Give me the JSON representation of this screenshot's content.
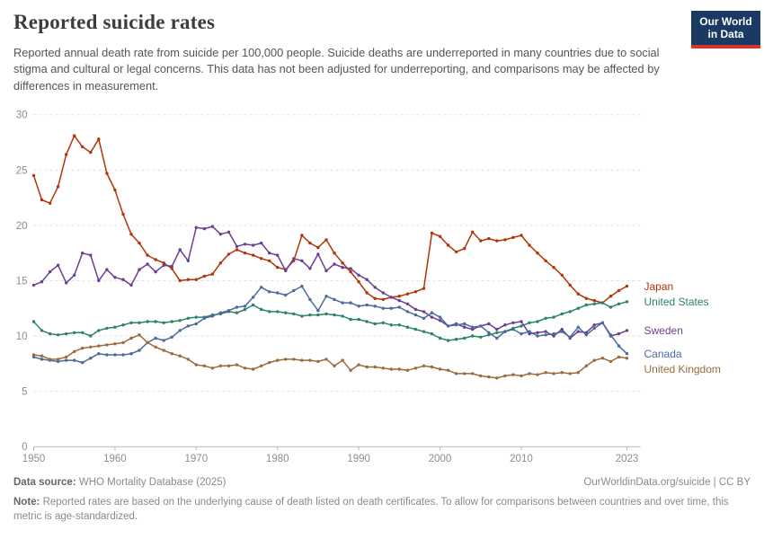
{
  "header": {
    "title": "Reported suicide rates",
    "subtitle": "Reported annual death rate from suicide per 100,000 people. Suicide deaths are underreported in many countries due to social stigma and cultural or legal concerns. This data has not been adjusted for underreporting, and comparisons may be affected by differences in measurement.",
    "logo": {
      "line1": "Our World",
      "line2": "in Data",
      "bg_color": "#1a3a63",
      "accent_color": "#d8342e"
    }
  },
  "chart_data": {
    "type": "line",
    "title": "Reported suicide rates",
    "xlabel": "",
    "ylabel": "",
    "xlim": [
      1950,
      2023
    ],
    "ylim": [
      0,
      30
    ],
    "x_ticks": [
      1950,
      1960,
      1970,
      1980,
      1990,
      2000,
      2010,
      2023
    ],
    "y_ticks": [
      0,
      5,
      10,
      15,
      20,
      25,
      30
    ],
    "grid": "horizontal-dashed",
    "legend_position": "line-end-labels-right",
    "x_start": 1950,
    "x_step": 1,
    "series": [
      {
        "name": "Japan",
        "color": "#b13507",
        "values": [
          24.5,
          22.3,
          22.0,
          23.5,
          26.4,
          28.1,
          27.1,
          26.6,
          27.8,
          24.7,
          23.2,
          21.0,
          19.2,
          18.4,
          17.3,
          16.9,
          16.6,
          16.1,
          15.0,
          15.1,
          15.1,
          15.4,
          15.6,
          16.6,
          17.4,
          17.8,
          17.5,
          17.3,
          17.0,
          16.8,
          16.2,
          16.0,
          16.8,
          19.1,
          18.4,
          18.0,
          18.7,
          17.5,
          16.6,
          15.8,
          14.9,
          13.9,
          13.4,
          13.3,
          13.5,
          13.6,
          13.8,
          14.0,
          14.3,
          19.3,
          19.0,
          18.2,
          17.6,
          17.9,
          19.4,
          18.6,
          18.8,
          18.6,
          18.7,
          18.9,
          19.1,
          18.2,
          17.5,
          16.8,
          16.2,
          15.5,
          14.6,
          13.8,
          13.4,
          13.2,
          13.0,
          13.6,
          14.1,
          14.5
        ]
      },
      {
        "name": "United States",
        "color": "#2c8465",
        "values": [
          11.3,
          10.5,
          10.2,
          10.1,
          10.2,
          10.3,
          10.3,
          10.0,
          10.5,
          10.7,
          10.8,
          11.0,
          11.2,
          11.2,
          11.3,
          11.3,
          11.2,
          11.3,
          11.4,
          11.6,
          11.7,
          11.7,
          11.9,
          12.0,
          12.2,
          12.1,
          12.4,
          12.8,
          12.4,
          12.2,
          12.2,
          12.1,
          12.0,
          11.8,
          11.9,
          11.9,
          12.0,
          11.9,
          11.8,
          11.5,
          11.5,
          11.3,
          11.1,
          11.2,
          11.0,
          11.0,
          10.8,
          10.6,
          10.4,
          10.2,
          9.8,
          9.6,
          9.7,
          9.8,
          10.0,
          9.9,
          10.1,
          10.3,
          10.4,
          10.7,
          10.9,
          11.2,
          11.3,
          11.6,
          11.7,
          12.0,
          12.2,
          12.5,
          12.8,
          12.9,
          13.0,
          12.6,
          12.9,
          13.1
        ]
      },
      {
        "name": "Sweden",
        "color": "#6d3e91",
        "values": [
          14.6,
          14.9,
          15.8,
          16.4,
          14.8,
          15.5,
          17.5,
          17.3,
          15.0,
          16.0,
          15.3,
          15.1,
          14.6,
          16.0,
          16.5,
          15.8,
          16.4,
          16.3,
          17.8,
          16.8,
          19.8,
          19.7,
          19.9,
          19.2,
          19.4,
          18.1,
          18.3,
          18.2,
          18.4,
          17.5,
          17.3,
          15.9,
          17.0,
          16.8,
          16.1,
          17.4,
          15.9,
          16.5,
          16.2,
          16.1,
          15.5,
          15.1,
          14.4,
          13.9,
          13.5,
          13.2,
          12.9,
          12.4,
          12.2,
          11.7,
          11.4,
          10.9,
          11.1,
          10.8,
          10.6,
          10.9,
          11.1,
          10.6,
          11.0,
          11.2,
          11.3,
          10.2,
          10.3,
          10.4,
          10.0,
          10.6,
          9.8,
          10.4,
          10.3,
          11.0,
          11.2,
          10.0,
          10.2,
          10.5
        ]
      },
      {
        "name": "Canada",
        "color": "#4c6a9c",
        "values": [
          8.1,
          7.9,
          7.8,
          7.7,
          7.8,
          7.8,
          7.6,
          8.0,
          8.4,
          8.3,
          8.3,
          8.3,
          8.4,
          8.7,
          9.4,
          9.8,
          9.6,
          9.9,
          10.5,
          10.9,
          11.1,
          11.6,
          11.8,
          12.1,
          12.3,
          12.6,
          12.7,
          13.5,
          14.4,
          14.0,
          13.9,
          13.7,
          14.1,
          14.5,
          13.3,
          12.3,
          13.6,
          13.3,
          13.0,
          13.0,
          12.7,
          12.8,
          12.7,
          12.5,
          12.5,
          12.6,
          12.2,
          11.9,
          11.6,
          12.1,
          11.7,
          10.9,
          11.0,
          11.1,
          10.8,
          10.9,
          10.3,
          9.8,
          10.4,
          10.6,
          10.2,
          10.4,
          10.0,
          10.1,
          10.2,
          10.4,
          9.9,
          10.8,
          10.1,
          10.7,
          11.2,
          10.1,
          9.1,
          8.4
        ]
      },
      {
        "name": "United Kingdom",
        "color": "#9c6b3a",
        "values": [
          8.3,
          8.2,
          7.9,
          7.9,
          8.1,
          8.6,
          8.9,
          9.0,
          9.1,
          9.2,
          9.3,
          9.4,
          9.8,
          10.1,
          9.4,
          9.0,
          8.7,
          8.4,
          8.2,
          7.9,
          7.4,
          7.3,
          7.1,
          7.3,
          7.3,
          7.4,
          7.1,
          7.0,
          7.3,
          7.6,
          7.8,
          7.9,
          7.9,
          7.8,
          7.8,
          7.7,
          7.9,
          7.3,
          7.8,
          6.9,
          7.4,
          7.2,
          7.2,
          7.1,
          7.0,
          7.0,
          6.9,
          7.1,
          7.3,
          7.2,
          7.0,
          6.9,
          6.6,
          6.6,
          6.6,
          6.4,
          6.3,
          6.2,
          6.4,
          6.5,
          6.4,
          6.6,
          6.5,
          6.7,
          6.6,
          6.7,
          6.6,
          6.7,
          7.3,
          7.8,
          8.0,
          7.7,
          8.1,
          8.0
        ]
      }
    ]
  },
  "footer": {
    "source_label": "Data source:",
    "source_text": " WHO Mortality Database (2025)",
    "link_text": "OurWorldinData.org/suicide | CC BY",
    "note_label": "Note:",
    "note_text": " Reported rates are based on the underlying cause of death listed on death certificates. To allow for comparisons between countries and over time, this metric is age-standardized."
  }
}
